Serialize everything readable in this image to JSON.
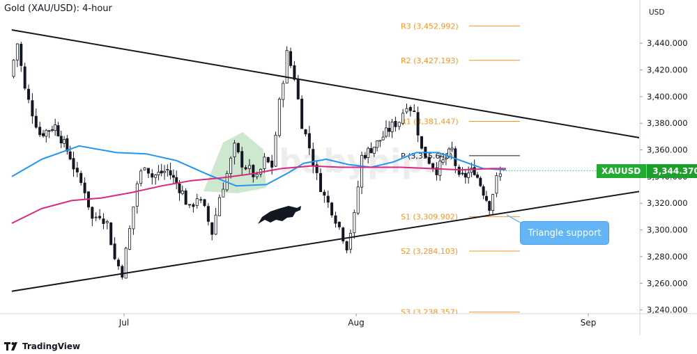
{
  "title": "Gold (XAU/USD): 4-hour",
  "currency": "USD",
  "branding": "TradingView",
  "watermark": "babypips",
  "symbol_tag": {
    "symbol": "XAUUSD",
    "price": "3,344.370",
    "color": "#22ab31"
  },
  "callout": {
    "text": "Triangle support",
    "color": "#64b5f6"
  },
  "chart_data": {
    "type": "candlestick",
    "y_axis": {
      "range": [
        3230,
        3470
      ],
      "ticks": [
        3440,
        3420,
        3400,
        3380,
        3360,
        3340,
        3320,
        3300,
        3280,
        3260,
        3240
      ],
      "tick_labels": [
        "3,440.000",
        "3,420.000",
        "3,400.000",
        "3,380.000",
        "3,360.000",
        "3,340.000",
        "3,320.000",
        "3,300.000",
        "3,280.000",
        "3,260.000",
        "3,240.000"
      ]
    },
    "x_axis": {
      "labels": [
        {
          "label": "Jul",
          "date": "2025-07-01"
        },
        {
          "label": "Aug",
          "date": "2025-08-01"
        },
        {
          "label": "Sep",
          "date": "2025-09-01"
        }
      ],
      "range": [
        "2025-06-16",
        "2025-09-08"
      ]
    },
    "last_price": 3344.37,
    "pivot_levels": [
      {
        "name": "R3",
        "label": "R3 (3,452.992)",
        "value": 3452.992
      },
      {
        "name": "R2",
        "label": "R2 (3,427.193)",
        "value": 3427.193
      },
      {
        "name": "R1",
        "label": "R1 (3,381.447)",
        "value": 3381.447
      },
      {
        "name": "P",
        "label": "P (3,355.646)",
        "value": 3355.646
      },
      {
        "name": "S1",
        "label": "S1 (3,309.902)",
        "value": 3309.902
      },
      {
        "name": "S2",
        "label": "S2 (3,284.103)",
        "value": 3284.103
      },
      {
        "name": "S3",
        "label": "S3 (3,238.357)",
        "value": 3238.357
      }
    ],
    "trendlines": [
      {
        "name": "upper",
        "from": {
          "date": "2025-06-16",
          "price": 3450
        },
        "to": {
          "date": "2025-09-08",
          "price": 3369
        }
      },
      {
        "name": "lower",
        "from": {
          "date": "2025-06-16",
          "price": 3254
        },
        "to": {
          "date": "2025-09-08",
          "price": 3329
        }
      }
    ],
    "moving_averages": [
      {
        "color": "#2196f3",
        "points": [
          [
            "2025-06-16",
            3340
          ],
          [
            "2025-06-20",
            3353
          ],
          [
            "2025-06-25",
            3363
          ],
          [
            "2025-06-30",
            3358
          ],
          [
            "2025-07-04",
            3357
          ],
          [
            "2025-07-08",
            3352
          ],
          [
            "2025-07-12",
            3342
          ],
          [
            "2025-07-16",
            3333
          ],
          [
            "2025-07-20",
            3334
          ],
          [
            "2025-07-23",
            3343
          ],
          [
            "2025-07-25",
            3350
          ],
          [
            "2025-07-28",
            3353
          ],
          [
            "2025-07-31",
            3349
          ],
          [
            "2025-08-03",
            3347
          ],
          [
            "2025-08-06",
            3351
          ],
          [
            "2025-08-09",
            3358
          ],
          [
            "2025-08-12",
            3358
          ],
          [
            "2025-08-15",
            3352
          ],
          [
            "2025-08-18",
            3346
          ],
          [
            "2025-08-21",
            3345
          ]
        ]
      },
      {
        "color": "#d6297f",
        "points": [
          [
            "2025-06-16",
            3305
          ],
          [
            "2025-06-20",
            3316
          ],
          [
            "2025-06-24",
            3322
          ],
          [
            "2025-06-28",
            3324
          ],
          [
            "2025-07-02",
            3328
          ],
          [
            "2025-07-06",
            3333
          ],
          [
            "2025-07-10",
            3337
          ],
          [
            "2025-07-14",
            3339
          ],
          [
            "2025-07-18",
            3342
          ],
          [
            "2025-07-22",
            3346
          ],
          [
            "2025-07-26",
            3348
          ],
          [
            "2025-07-30",
            3347
          ],
          [
            "2025-08-03",
            3347
          ],
          [
            "2025-08-07",
            3347
          ],
          [
            "2025-08-11",
            3346
          ],
          [
            "2025-08-15",
            3345
          ],
          [
            "2025-08-19",
            3346
          ],
          [
            "2025-08-21",
            3346
          ]
        ]
      }
    ],
    "price_path": [
      [
        "2025-06-16",
        3415
      ],
      [
        "2025-06-17",
        3440
      ],
      [
        "2025-06-18",
        3405
      ],
      [
        "2025-06-19",
        3388
      ],
      [
        "2025-06-20",
        3372
      ],
      [
        "2025-06-22",
        3378
      ],
      [
        "2025-06-24",
        3355
      ],
      [
        "2025-06-25",
        3340
      ],
      [
        "2025-06-26",
        3330
      ],
      [
        "2025-06-27",
        3308
      ],
      [
        "2025-06-28",
        3312
      ],
      [
        "2025-06-29",
        3305
      ],
      [
        "2025-06-30",
        3278
      ],
      [
        "2025-07-01",
        3268
      ],
      [
        "2025-07-02",
        3300
      ],
      [
        "2025-07-03",
        3335
      ],
      [
        "2025-07-04",
        3350
      ],
      [
        "2025-07-05",
        3340
      ],
      [
        "2025-07-07",
        3345
      ],
      [
        "2025-07-09",
        3328
      ],
      [
        "2025-07-10",
        3315
      ],
      [
        "2025-07-11",
        3325
      ],
      [
        "2025-07-12",
        3315
      ],
      [
        "2025-07-13",
        3298
      ],
      [
        "2025-07-14",
        3325
      ],
      [
        "2025-07-15",
        3342
      ],
      [
        "2025-07-16",
        3362
      ],
      [
        "2025-07-17",
        3350
      ],
      [
        "2025-07-18",
        3345
      ],
      [
        "2025-07-19",
        3338
      ],
      [
        "2025-07-20",
        3352
      ],
      [
        "2025-07-21",
        3348
      ],
      [
        "2025-07-22",
        3395
      ],
      [
        "2025-07-23",
        3432
      ],
      [
        "2025-07-24",
        3415
      ],
      [
        "2025-07-25",
        3380
      ],
      [
        "2025-07-26",
        3362
      ],
      [
        "2025-07-27",
        3340
      ],
      [
        "2025-07-28",
        3325
      ],
      [
        "2025-07-29",
        3315
      ],
      [
        "2025-07-30",
        3302
      ],
      [
        "2025-07-31",
        3288
      ],
      [
        "2025-08-01",
        3310
      ],
      [
        "2025-08-02",
        3355
      ],
      [
        "2025-08-04",
        3365
      ],
      [
        "2025-08-06",
        3378
      ],
      [
        "2025-08-07",
        3382
      ],
      [
        "2025-08-08",
        3395
      ],
      [
        "2025-08-09",
        3388
      ],
      [
        "2025-08-10",
        3360
      ],
      [
        "2025-08-11",
        3352
      ],
      [
        "2025-08-12",
        3345
      ],
      [
        "2025-08-14",
        3360
      ],
      [
        "2025-08-15",
        3338
      ],
      [
        "2025-08-17",
        3345
      ],
      [
        "2025-08-19",
        3318
      ],
      [
        "2025-08-20",
        3338
      ],
      [
        "2025-08-21",
        3344
      ]
    ]
  }
}
